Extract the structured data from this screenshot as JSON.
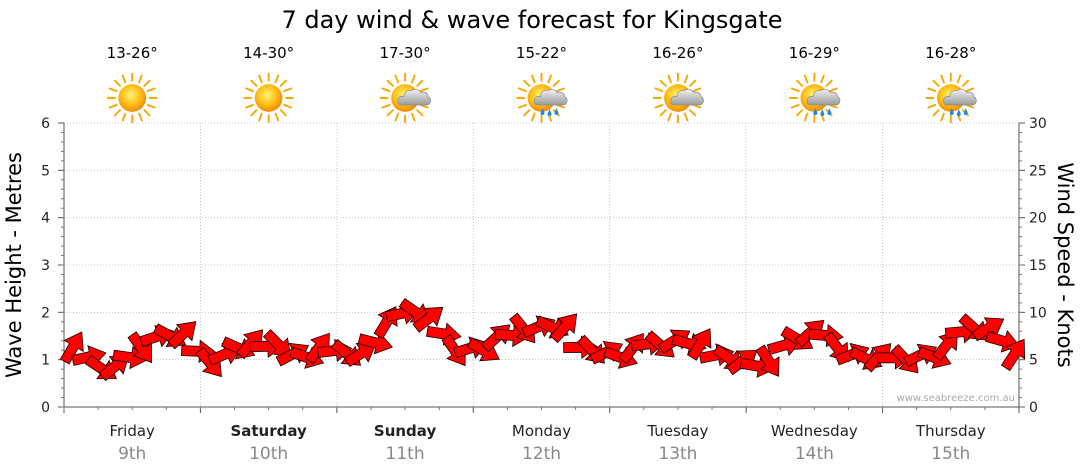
{
  "title": "7 day wind & wave forecast for Kingsgate",
  "credit": "www.seabreeze.com.au",
  "days": [
    {
      "name": "Friday",
      "date": "9th",
      "bold": false,
      "temp": "13-26°",
      "icon": "sun-icon"
    },
    {
      "name": "Saturday",
      "date": "10th",
      "bold": true,
      "temp": "14-30°",
      "icon": "sun-icon"
    },
    {
      "name": "Sunday",
      "date": "11th",
      "bold": true,
      "temp": "17-30°",
      "icon": "sun-cloud-icon"
    },
    {
      "name": "Monday",
      "date": "12th",
      "bold": false,
      "temp": "15-22°",
      "icon": "sun-cloud-rain-icon"
    },
    {
      "name": "Tuesday",
      "date": "13th",
      "bold": false,
      "temp": "16-26°",
      "icon": "sun-cloud-icon"
    },
    {
      "name": "Wednesday",
      "date": "14th",
      "bold": false,
      "temp": "16-29°",
      "icon": "sun-cloud-rain-icon"
    },
    {
      "name": "Thursday",
      "date": "15th",
      "bold": false,
      "temp": "16-28°",
      "icon": "sun-cloud-rain-icon"
    }
  ],
  "chart_data": {
    "type": "line",
    "ylabel_left": "Wave Height - Metres",
    "ylabel_right": "Wind Speed - Knots",
    "ylim_left": [
      0,
      6
    ],
    "ylim_right": [
      0,
      30
    ],
    "yticks_left": [
      "0",
      "1",
      "2",
      "3",
      "4",
      "5",
      "6"
    ],
    "yticks_right": [
      "0",
      "5",
      "10",
      "15",
      "20",
      "25",
      "30"
    ],
    "grid": true,
    "arrow_color": "#ff0000",
    "series": [
      {
        "x_days": [
          0.0,
          0.1,
          0.2,
          0.3,
          0.4,
          0.5,
          0.6,
          0.7,
          0.8,
          0.9,
          1.0,
          1.1,
          1.2,
          1.3,
          1.4,
          1.5,
          1.6,
          1.7,
          1.8,
          1.9,
          2.0,
          2.1,
          2.2,
          2.3,
          2.4,
          2.5,
          2.6,
          2.7,
          2.8,
          2.9,
          3.0,
          3.1,
          3.2,
          3.3,
          3.4,
          3.5,
          3.6,
          3.7,
          3.8,
          3.9,
          4.0,
          4.1,
          4.2,
          4.3,
          4.4,
          4.5,
          4.6,
          4.7,
          4.8,
          4.9,
          5.0,
          5.1,
          5.2,
          5.3,
          5.4,
          5.5,
          5.6,
          5.7,
          5.8,
          5.9,
          6.0,
          6.1,
          6.2,
          6.3,
          6.4,
          6.5,
          6.6,
          6.7,
          6.8,
          6.9
        ],
        "values": [
          5.9,
          5.2,
          4.3,
          4.0,
          5.3,
          6.6,
          7.3,
          7.7,
          7.4,
          5.9,
          5.0,
          5.4,
          6.4,
          6.4,
          6.4,
          6.9,
          5.4,
          5.4,
          5.9,
          5.9,
          5.9,
          5.4,
          6.9,
          8.6,
          9.8,
          10.3,
          9.1,
          7.8,
          6.3,
          6.1,
          6.2,
          7.1,
          7.6,
          8.6,
          8.3,
          8.6,
          8.1,
          6.3,
          6.3,
          5.6,
          5.4,
          5.9,
          6.6,
          6.8,
          6.8,
          6.8,
          6.3,
          5.4,
          5.4,
          4.6,
          4.4,
          5.2,
          6.4,
          7.4,
          7.6,
          7.6,
          6.6,
          5.4,
          5.3,
          5.0,
          5.2,
          5.3,
          5.3,
          5.4,
          6.2,
          7.9,
          8.6,
          8.1,
          7.1,
          5.2
        ]
      }
    ]
  }
}
